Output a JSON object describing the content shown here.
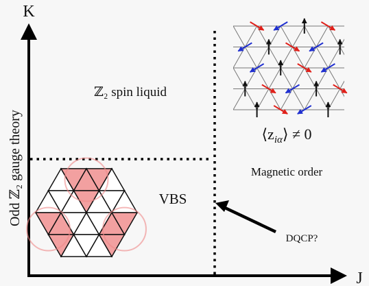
{
  "axes": {
    "y_label": "K",
    "x_label": "J",
    "side_label": "Odd ℤ₂ gauge theory"
  },
  "regions": {
    "spin_liquid": "ℤ₂ spin liquid",
    "order_parameter": {
      "base": "⟨z",
      "sub": "iα",
      "rest": "⟩ ≠ 0"
    },
    "magnetic": "Magnetic order",
    "vbs": "VBS"
  },
  "annotation": "DQCP?"
}
